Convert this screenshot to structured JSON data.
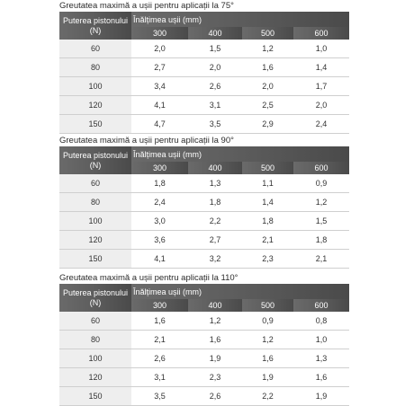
{
  "tables": [
    {
      "title": "Greutatea maximă a ușii pentru aplicații la 75°",
      "power_header": "Puterea pistonului (N)",
      "height_header": "Înălțimea ușii (mm)",
      "columns": [
        "300",
        "400",
        "500",
        "600"
      ],
      "rows": [
        {
          "power": "60",
          "values": [
            "2,0",
            "1,5",
            "1,2",
            "1,0"
          ]
        },
        {
          "power": "80",
          "values": [
            "2,7",
            "2,0",
            "1,6",
            "1,4"
          ]
        },
        {
          "power": "100",
          "values": [
            "3,4",
            "2,6",
            "2,0",
            "1,7"
          ]
        },
        {
          "power": "120",
          "values": [
            "4,1",
            "3,1",
            "2,5",
            "2,0"
          ]
        },
        {
          "power": "150",
          "values": [
            "4,7",
            "3,5",
            "2,9",
            "2,4"
          ]
        }
      ]
    },
    {
      "title": "Greutatea maximă a ușii pentru aplicații la 90°",
      "power_header": "Puterea pistonului (N)",
      "height_header": "Înălțimea ușii (mm)",
      "columns": [
        "300",
        "400",
        "500",
        "600"
      ],
      "rows": [
        {
          "power": "60",
          "values": [
            "1,8",
            "1,3",
            "1,1",
            "0,9"
          ]
        },
        {
          "power": "80",
          "values": [
            "2,4",
            "1,8",
            "1,4",
            "1,2"
          ]
        },
        {
          "power": "100",
          "values": [
            "3,0",
            "2,2",
            "1,8",
            "1,5"
          ]
        },
        {
          "power": "120",
          "values": [
            "3,6",
            "2,7",
            "2,1",
            "1,8"
          ]
        },
        {
          "power": "150",
          "values": [
            "4,1",
            "3,2",
            "2,3",
            "2,1"
          ]
        }
      ]
    },
    {
      "title": "Greutatea maximă a ușii pentru aplicații la 110°",
      "power_header": "Puterea pistonului (N)",
      "height_header": "Înălțimea ușii (mm)",
      "columns": [
        "300",
        "400",
        "500",
        "600"
      ],
      "rows": [
        {
          "power": "60",
          "values": [
            "1,6",
            "1,2",
            "0,9",
            "0,8"
          ]
        },
        {
          "power": "80",
          "values": [
            "2,1",
            "1,6",
            "1,2",
            "1,0"
          ]
        },
        {
          "power": "100",
          "values": [
            "2,6",
            "1,9",
            "1,6",
            "1,3"
          ]
        },
        {
          "power": "120",
          "values": [
            "3,1",
            "2,3",
            "1,9",
            "1,6"
          ]
        },
        {
          "power": "150",
          "values": [
            "3,5",
            "2,6",
            "2,2",
            "1,9"
          ]
        }
      ]
    }
  ]
}
